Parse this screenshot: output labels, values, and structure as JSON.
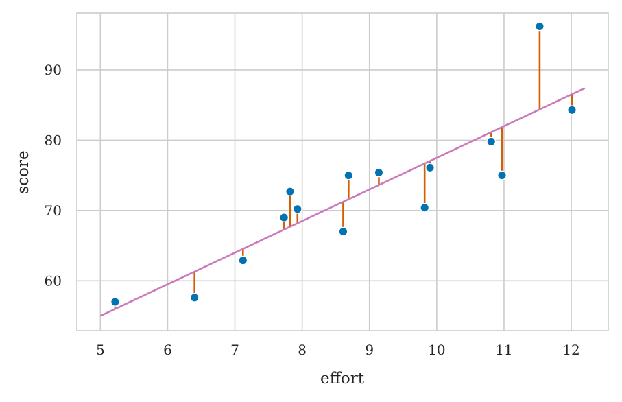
{
  "chart_data": {
    "type": "scatter",
    "xlabel": "effort",
    "ylabel": "score",
    "xlim": [
      4.65,
      12.55
    ],
    "ylim": [
      52.9,
      98.1
    ],
    "xticks": [
      5,
      6,
      7,
      8,
      9,
      10,
      11,
      12
    ],
    "yticks": [
      60,
      70,
      80,
      90
    ],
    "grid": true,
    "points": [
      {
        "x": 5.22,
        "y": 57.0
      },
      {
        "x": 6.4,
        "y": 57.6
      },
      {
        "x": 7.12,
        "y": 62.9
      },
      {
        "x": 7.73,
        "y": 69.0
      },
      {
        "x": 7.82,
        "y": 72.7
      },
      {
        "x": 7.93,
        "y": 70.2
      },
      {
        "x": 8.61,
        "y": 67.0
      },
      {
        "x": 8.69,
        "y": 75.0
      },
      {
        "x": 9.14,
        "y": 75.4
      },
      {
        "x": 9.82,
        "y": 70.4
      },
      {
        "x": 9.9,
        "y": 76.1
      },
      {
        "x": 10.81,
        "y": 79.8
      },
      {
        "x": 10.97,
        "y": 75.0
      },
      {
        "x": 11.53,
        "y": 96.2
      },
      {
        "x": 12.01,
        "y": 84.3
      }
    ],
    "fit_line": {
      "x": [
        5.0,
        12.2
      ],
      "y": [
        55.0,
        87.4
      ]
    },
    "colors": {
      "points": "#0173b2",
      "fit_line": "#cc78bc",
      "residuals": "#d55e00",
      "grid": "#cccccc",
      "spine": "#cccccc"
    }
  }
}
